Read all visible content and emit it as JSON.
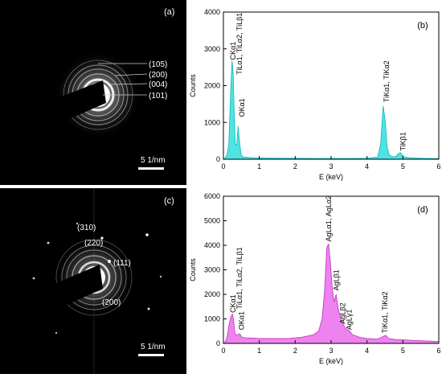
{
  "panels": {
    "a": {
      "label": "(a)",
      "planes": [
        "(105)",
        "(200)",
        "(004)",
        "(101)"
      ],
      "scale_bar": "5 1/nm"
    },
    "c": {
      "label": "(c)",
      "planes": [
        "(310)",
        "(220)",
        "(111)",
        "(200)"
      ],
      "scale_bar": "5 1/nm"
    }
  },
  "chart_data": [
    {
      "type": "line",
      "panel_label": "(b)",
      "xlabel": "E (keV)",
      "ylabel": "Counts",
      "xlim": [
        0,
        6
      ],
      "ylim": [
        0,
        4000
      ],
      "xticks": [
        0,
        1,
        2,
        3,
        4,
        5,
        6
      ],
      "yticks": [
        0,
        1000,
        2000,
        3000,
        4000
      ],
      "fill_color": "#4fe3e3",
      "stroke_color": "#10b8b8",
      "series": [
        {
          "x": [
            0.0,
            0.05,
            0.1,
            0.15,
            0.2,
            0.24,
            0.27,
            0.3,
            0.33,
            0.37,
            0.41,
            0.45,
            0.49,
            0.53,
            0.6,
            0.8,
            1.2,
            1.6,
            2.0,
            2.5,
            3.0,
            3.5,
            4.0,
            4.3,
            4.38,
            4.45,
            4.51,
            4.56,
            4.62,
            4.7,
            4.8,
            4.88,
            4.93,
            4.98,
            5.05,
            5.2,
            5.5,
            6.0
          ],
          "y": [
            0,
            40,
            120,
            400,
            1800,
            2680,
            2350,
            1300,
            420,
            380,
            900,
            470,
            140,
            70,
            60,
            40,
            35,
            30,
            30,
            25,
            25,
            25,
            30,
            60,
            420,
            1450,
            1050,
            330,
            120,
            70,
            70,
            160,
            180,
            120,
            60,
            40,
            30,
            20
          ]
        }
      ],
      "annotations": [
        {
          "text": "CKα1",
          "x": 0.27,
          "y": 2700
        },
        {
          "text": "TiLα1, TiLα2, TiLβ1",
          "x": 0.45,
          "y": 2300
        },
        {
          "text": "OKα1",
          "x": 0.52,
          "y": 1150
        },
        {
          "text": "TiKα1, TiKα2",
          "x": 4.55,
          "y": 1550
        },
        {
          "text": "TiKβ1",
          "x": 5.0,
          "y": 230
        }
      ]
    },
    {
      "type": "line",
      "panel_label": "(d)",
      "xlabel": "E (keV)",
      "ylabel": "Counts",
      "xlim": [
        0,
        6
      ],
      "ylim": [
        0,
        6000
      ],
      "xticks": [
        0,
        1,
        2,
        3,
        4,
        5,
        6
      ],
      "yticks": [
        0,
        1000,
        2000,
        3000,
        4000,
        5000,
        6000
      ],
      "fill_color": "#ee82ee",
      "stroke_color": "#c030c0",
      "series": [
        {
          "x": [
            0.0,
            0.05,
            0.1,
            0.15,
            0.2,
            0.25,
            0.28,
            0.32,
            0.38,
            0.45,
            0.52,
            0.6,
            0.8,
            1.0,
            1.4,
            1.8,
            2.2,
            2.5,
            2.65,
            2.75,
            2.82,
            2.88,
            2.93,
            2.98,
            3.03,
            3.08,
            3.14,
            3.2,
            3.3,
            3.4,
            3.5,
            3.6,
            3.8,
            4.0,
            4.3,
            4.45,
            4.52,
            4.6,
            4.8,
            5.2,
            6.0
          ],
          "y": [
            0,
            60,
            250,
            700,
            1050,
            1200,
            1000,
            400,
            320,
            400,
            250,
            230,
            220,
            200,
            200,
            200,
            260,
            350,
            500,
            1000,
            2200,
            3900,
            4050,
            3300,
            2300,
            1700,
            2000,
            1400,
            900,
            600,
            520,
            350,
            250,
            200,
            180,
            280,
            330,
            200,
            160,
            130,
            80
          ]
        }
      ],
      "annotations": [
        {
          "text": "CKα1",
          "x": 0.27,
          "y": 1250
        },
        {
          "text": "TiLα1, TiLα2, TiLβ1",
          "x": 0.45,
          "y": 1400
        },
        {
          "text": "OKα1",
          "x": 0.5,
          "y": 550
        },
        {
          "text": "AgLα1, AgLα2",
          "x": 2.93,
          "y": 4150
        },
        {
          "text": "AgLβ1",
          "x": 3.15,
          "y": 2150
        },
        {
          "text": "AgLβ2",
          "x": 3.33,
          "y": 800
        },
        {
          "text": "AgLγ1",
          "x": 3.5,
          "y": 550
        },
        {
          "text": "TiKα1, TiKα2",
          "x": 4.5,
          "y": 420
        }
      ]
    }
  ]
}
